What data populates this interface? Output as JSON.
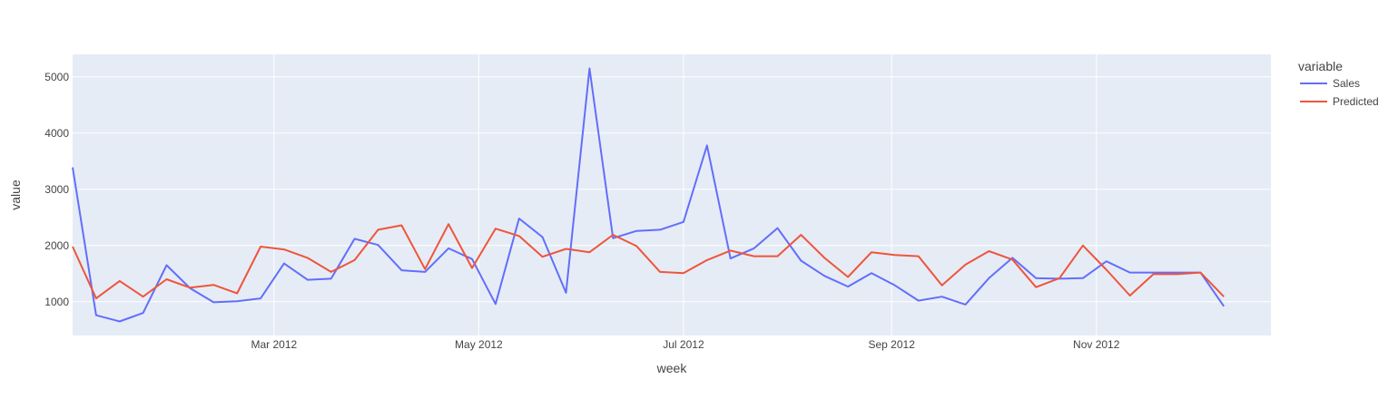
{
  "chart_data": {
    "type": "line",
    "title": "",
    "xlabel": "week",
    "ylabel": "value",
    "x_start": "2012-01-01",
    "x_step_days": 7,
    "xlim": [
      "2012-01-01",
      "2012-12-23"
    ],
    "ylim": [
      400,
      5400
    ],
    "x_tick_labels": [
      "Mar 2012",
      "May 2012",
      "Jul 2012",
      "Sep 2012",
      "Nov 2012"
    ],
    "x_tick_dates": [
      "2012-03-01",
      "2012-05-01",
      "2012-07-01",
      "2012-09-01",
      "2012-11-01"
    ],
    "y_ticks": [
      1000,
      2000,
      3000,
      4000,
      5000
    ],
    "grid": true,
    "legend": {
      "title": "variable",
      "placement": "right"
    },
    "series": [
      {
        "name": "Sales",
        "color": "#636efa",
        "values": [
          3390,
          760,
          650,
          800,
          1650,
          1240,
          990,
          1010,
          1060,
          1680,
          1390,
          1410,
          2120,
          2010,
          1560,
          1530,
          1950,
          1760,
          960,
          2480,
          2150,
          1160,
          5150,
          2130,
          2260,
          2280,
          2420,
          3780,
          1770,
          1950,
          2310,
          1730,
          1460,
          1270,
          1510,
          1290,
          1020,
          1090,
          950,
          1420,
          1780,
          1420,
          1410,
          1420,
          1720,
          1520,
          1520,
          1520,
          1520,
          920
        ]
      },
      {
        "name": "Predicted",
        "color": "#ef553b",
        "values": [
          1980,
          1060,
          1370,
          1090,
          1400,
          1250,
          1300,
          1150,
          1980,
          1930,
          1780,
          1530,
          1740,
          2280,
          2360,
          1580,
          2380,
          1600,
          2300,
          2170,
          1800,
          1940,
          1880,
          2190,
          1990,
          1530,
          1510,
          1740,
          1910,
          1810,
          1810,
          2190,
          1780,
          1440,
          1880,
          1830,
          1810,
          1290,
          1660,
          1900,
          1750,
          1260,
          1420,
          2000,
          1570,
          1110,
          1490,
          1490,
          1520,
          1090
        ]
      }
    ]
  }
}
